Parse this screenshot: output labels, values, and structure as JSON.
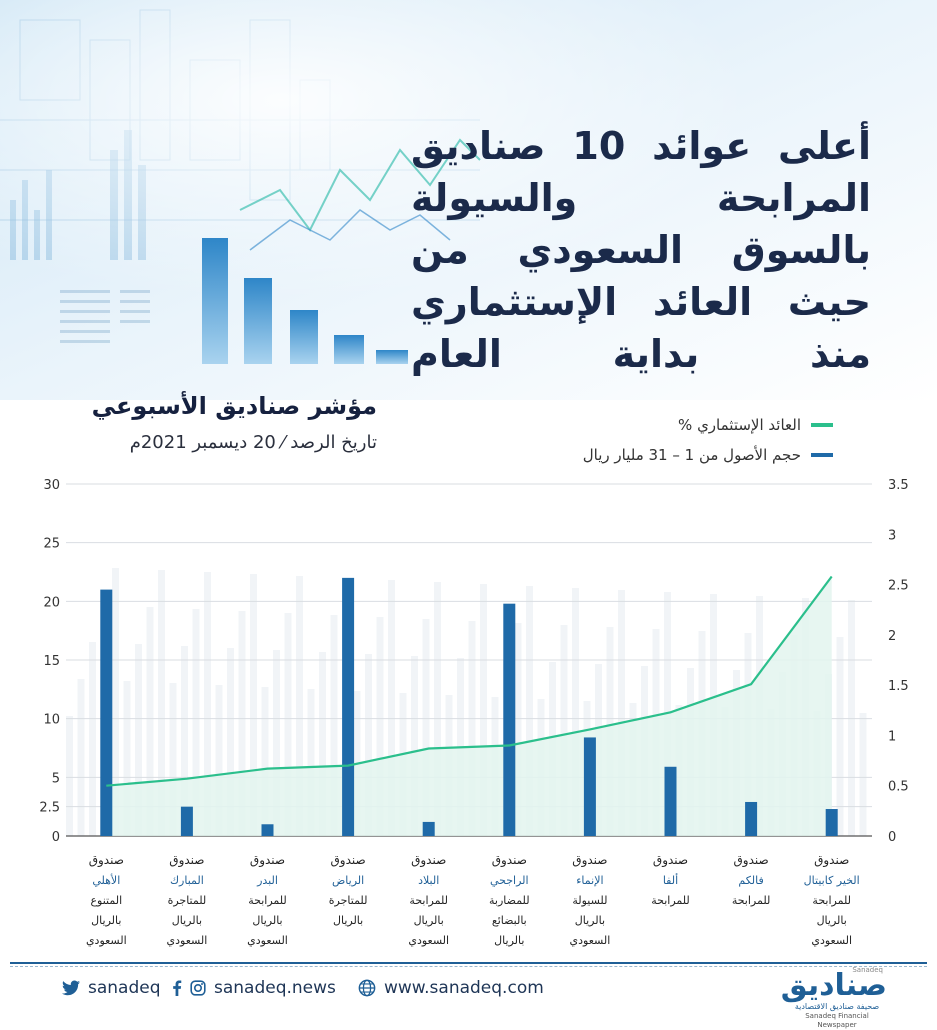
{
  "title": "أعلى عوائد 10 صناديق المرابحة والسيولة بالسوق السعودي من حيث العائد الإستثماري منذ بداية العام",
  "subtitle": "مؤشر صناديق الأسبوعي",
  "date_line": "تاريخ الرصد ⁄ 20 ديسمبر 2021م",
  "legend": {
    "line": "العائد الإستثماري %",
    "bar": "حجم الأصول من 1 – 31 مليار ريال"
  },
  "colors": {
    "bar": "#1f6aa8",
    "line": "#2bbf8c",
    "area": "#e3f5ef",
    "title": "#1b2a4a",
    "accent": "#1f5f96"
  },
  "chart_data": {
    "type": "bar",
    "categories": [
      [
        "صندوق",
        "الأهلي",
        "المتنوع",
        "بالريال",
        "السعودي"
      ],
      [
        "صندوق",
        "المبارك",
        "للمتاجرة",
        "بالريال",
        "السعودي"
      ],
      [
        "صندوق",
        "البدر",
        "للمرابحة",
        "بالريال",
        "السعودي"
      ],
      [
        "صندوق",
        "الرياض",
        "للمتاجرة",
        "بالريال"
      ],
      [
        "صندوق",
        "البلاد",
        "للمرابحة",
        "بالريال",
        "السعودي"
      ],
      [
        "صندوق",
        "الراجحي",
        "للمضاربة",
        "بالبضائع",
        "بالريال"
      ],
      [
        "صندوق",
        "الإنماء",
        "للسيولة",
        "بالريال",
        "السعودي"
      ],
      [
        "صندوق",
        "ألفا",
        "للمرابحة"
      ],
      [
        "صندوق",
        "فالكم",
        "للمرابحة"
      ],
      [
        "صندوق",
        "الخير كابيتال",
        "للمرابحة",
        "بالريال",
        "السعودي"
      ]
    ],
    "series": [
      {
        "name": "حجم الأصول من 1 – 31 مليار ريال",
        "type": "bar",
        "axis": "left",
        "values": [
          21,
          2.5,
          1,
          22,
          1.2,
          19.8,
          8.4,
          5.9,
          2.9,
          2.3
        ]
      },
      {
        "name": "العائد الإستثماري %",
        "type": "line",
        "axis": "right",
        "values": [
          0.5,
          0.57,
          0.67,
          0.7,
          0.87,
          0.9,
          1.06,
          1.23,
          1.51,
          2.58
        ]
      }
    ],
    "left_axis": {
      "ticks": [
        "0",
        "2.5",
        "5",
        "10",
        "15",
        "20",
        "25",
        "30"
      ],
      "ylim": [
        0,
        30
      ]
    },
    "right_axis": {
      "ticks": [
        "0",
        "0.5",
        "1",
        "1.5",
        "2",
        "2.5",
        "3",
        "3.5"
      ],
      "ylim": [
        0,
        3.5
      ]
    },
    "grid": true
  },
  "footer": {
    "twitter": "sanadeq",
    "social": "sanadeq.news",
    "website": "www.sanadeq.com",
    "twitter_icon": "twitter-icon",
    "facebook_icon": "facebook-icon",
    "instagram_icon": "instagram-icon",
    "globe_icon": "globe-icon"
  },
  "logo": {
    "top": "Sanadeq",
    "main": "صناديق",
    "sub_ar": "صحيفة صناديق الاقتصادية",
    "sub_en": "Sanadeq Financial Newspaper"
  }
}
